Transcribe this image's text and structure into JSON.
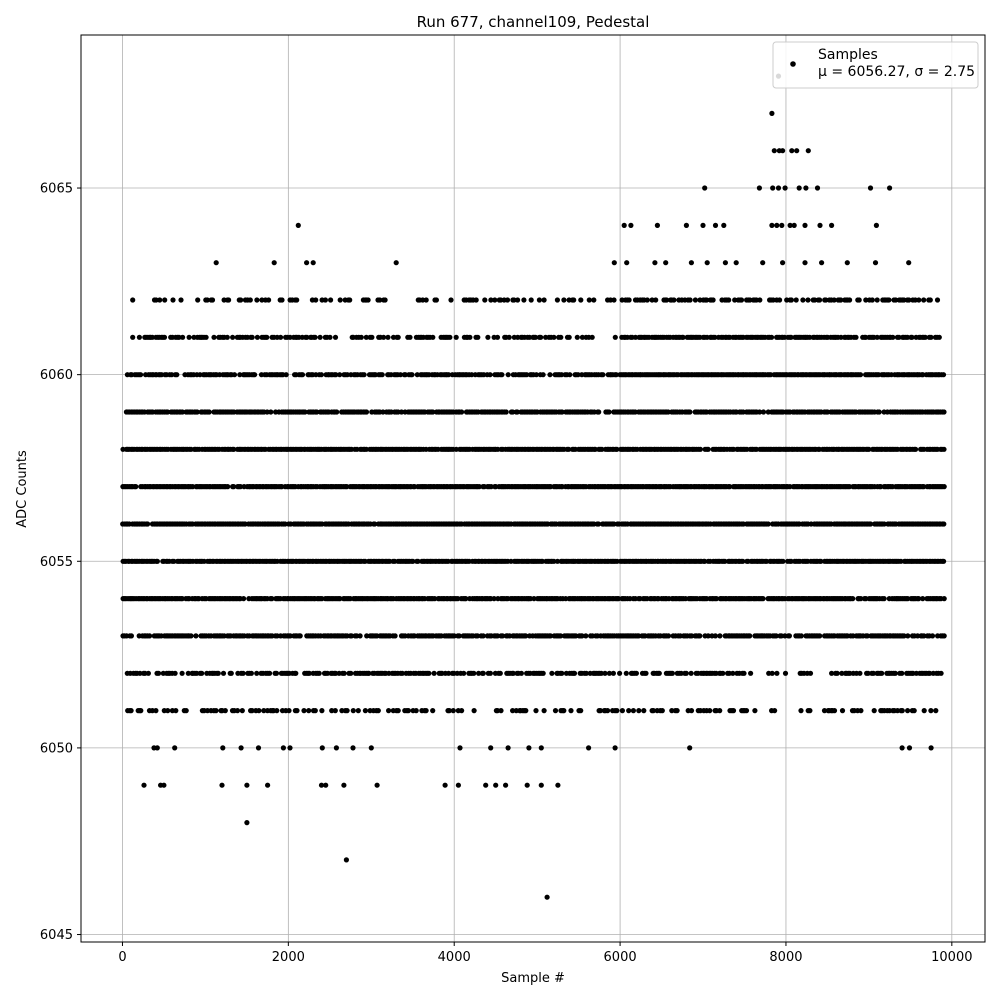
{
  "chart_data": {
    "type": "scatter",
    "title": "Run 677, channel109, Pedestal",
    "xlabel": "Sample #",
    "ylabel": "ADC Counts",
    "xlim": [
      -500,
      10400
    ],
    "ylim": [
      6044.8,
      6069.1
    ],
    "xticks": [
      0,
      2000,
      4000,
      6000,
      8000,
      10000
    ],
    "xtick_labels": [
      "0",
      "2000",
      "4000",
      "6000",
      "8000",
      "10000"
    ],
    "yticks": [
      6045,
      6050,
      6055,
      6060,
      6065
    ],
    "ytick_labels": [
      "6045",
      "6050",
      "6055",
      "6060",
      "6065"
    ],
    "grid": true,
    "legend": {
      "placement": "top-right",
      "entries": [
        {
          "label": "Samples",
          "sublabel": "μ = 6056.27, σ = 2.75"
        }
      ]
    },
    "series": [
      {
        "name": "Samples",
        "color": "#000000",
        "marker": "circle",
        "n_samples": 10000,
        "bands": [
          {
            "y": 6058,
            "x_range": [
              0,
              9900
            ]
          },
          {
            "y": 6057,
            "x_range": [
              0,
              9900
            ]
          },
          {
            "y": 6056,
            "x_range": [
              0,
              9900
            ]
          },
          {
            "y": 6055,
            "x_range": [
              0,
              9900
            ]
          },
          {
            "y": 6054,
            "x_range": [
              0,
              9900
            ]
          },
          {
            "y": 6053,
            "x_range": [
              0,
              9900
            ]
          },
          {
            "y": 6059,
            "x_range": [
              0,
              9900
            ]
          },
          {
            "y": 6060,
            "x_range": [
              50,
              9900
            ]
          },
          {
            "y": 6052,
            "x_range": [
              30,
              9900
            ]
          },
          {
            "y": 6061,
            "x_range": [
              100,
              9850
            ]
          },
          {
            "y": 6051,
            "x_range": [
              0,
              9800
            ]
          },
          {
            "y": 6062,
            "x_range": [
              100,
              9820
            ]
          }
        ],
        "points": [
          [
            1500,
            6048
          ],
          [
            2700,
            6047
          ],
          [
            5120,
            6046
          ],
          [
            260,
            6049
          ],
          [
            460,
            6049
          ],
          [
            500,
            6049
          ],
          [
            1200,
            6049
          ],
          [
            1500,
            6049
          ],
          [
            1750,
            6049
          ],
          [
            2400,
            6049
          ],
          [
            2450,
            6049
          ],
          [
            2670,
            6049
          ],
          [
            3070,
            6049
          ],
          [
            3890,
            6049
          ],
          [
            4050,
            6049
          ],
          [
            4380,
            6049
          ],
          [
            4500,
            6049
          ],
          [
            4620,
            6049
          ],
          [
            4880,
            6049
          ],
          [
            5050,
            6049
          ],
          [
            5250,
            6049
          ],
          [
            380,
            6050
          ],
          [
            420,
            6050
          ],
          [
            630,
            6050
          ],
          [
            1210,
            6050
          ],
          [
            1430,
            6050
          ],
          [
            1640,
            6050
          ],
          [
            1940,
            6050
          ],
          [
            2020,
            6050
          ],
          [
            2410,
            6050
          ],
          [
            2580,
            6050
          ],
          [
            2780,
            6050
          ],
          [
            3000,
            6050
          ],
          [
            4070,
            6050
          ],
          [
            4440,
            6050
          ],
          [
            4650,
            6050
          ],
          [
            4900,
            6050
          ],
          [
            5050,
            6050
          ],
          [
            5620,
            6050
          ],
          [
            5940,
            6050
          ],
          [
            6840,
            6050
          ],
          [
            9400,
            6050
          ],
          [
            9490,
            6050
          ],
          [
            9750,
            6050
          ],
          [
            1130,
            6063
          ],
          [
            1830,
            6063
          ],
          [
            2220,
            6063
          ],
          [
            2300,
            6063
          ],
          [
            3300,
            6063
          ],
          [
            5930,
            6063
          ],
          [
            6080,
            6063
          ],
          [
            6420,
            6063
          ],
          [
            6550,
            6063
          ],
          [
            6860,
            6063
          ],
          [
            7050,
            6063
          ],
          [
            7270,
            6063
          ],
          [
            7400,
            6063
          ],
          [
            7720,
            6063
          ],
          [
            7960,
            6063
          ],
          [
            8230,
            6063
          ],
          [
            8430,
            6063
          ],
          [
            8740,
            6063
          ],
          [
            9080,
            6063
          ],
          [
            9480,
            6063
          ],
          [
            2120,
            6064
          ],
          [
            6050,
            6064
          ],
          [
            6130,
            6064
          ],
          [
            6450,
            6064
          ],
          [
            6800,
            6064
          ],
          [
            7000,
            6064
          ],
          [
            7150,
            6064
          ],
          [
            7250,
            6064
          ],
          [
            7830,
            6064
          ],
          [
            7890,
            6064
          ],
          [
            7950,
            6064
          ],
          [
            8050,
            6064
          ],
          [
            8100,
            6064
          ],
          [
            8230,
            6064
          ],
          [
            8410,
            6064
          ],
          [
            8550,
            6064
          ],
          [
            9090,
            6064
          ],
          [
            7020,
            6065
          ],
          [
            7680,
            6065
          ],
          [
            7840,
            6065
          ],
          [
            7910,
            6065
          ],
          [
            7990,
            6065
          ],
          [
            8160,
            6065
          ],
          [
            8240,
            6065
          ],
          [
            8380,
            6065
          ],
          [
            9020,
            6065
          ],
          [
            9250,
            6065
          ],
          [
            7860,
            6066
          ],
          [
            7920,
            6066
          ],
          [
            7960,
            6066
          ],
          [
            8070,
            6066
          ],
          [
            8130,
            6066
          ],
          [
            8270,
            6066
          ],
          [
            7830,
            6067
          ],
          [
            7910,
            6068
          ]
        ]
      }
    ]
  }
}
